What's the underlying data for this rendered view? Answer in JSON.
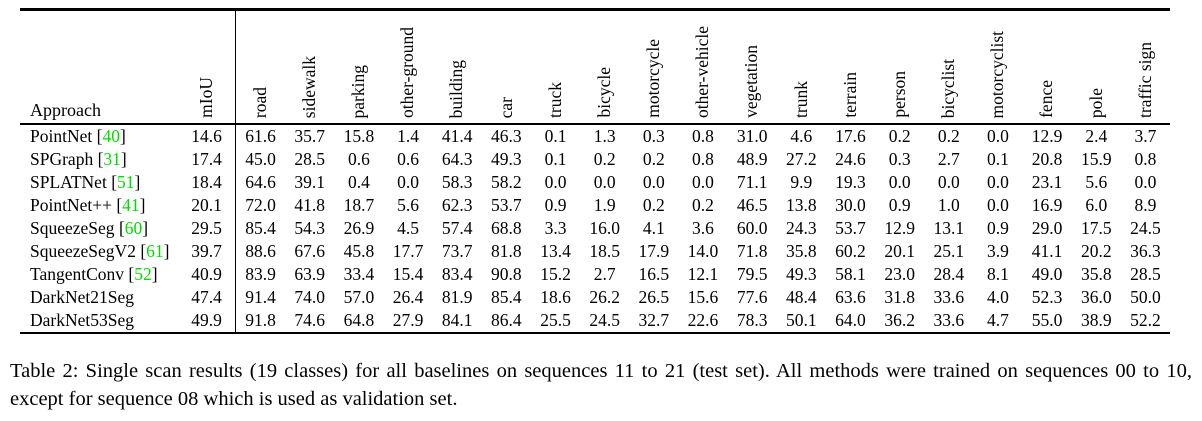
{
  "colors": {
    "text": "#000000",
    "background": "#ffffff",
    "citation_green": "#00dd00"
  },
  "citation_format": {
    "open": " [",
    "close": "]"
  },
  "table": {
    "header": {
      "approach_label": "Approach",
      "miou_label": "mIoU",
      "class_labels": [
        "road",
        "sidewalk",
        "parking",
        "other-ground",
        "building",
        "car",
        "truck",
        "bicycle",
        "motorcycle",
        "other-vehicle",
        "vegetation",
        "trunk",
        "terrain",
        "person",
        "bicyclist",
        "motorcyclist",
        "fence",
        "pole",
        "traffic sign"
      ]
    },
    "rows": [
      {
        "approach": "PointNet",
        "citation": "40",
        "miou": "14.6",
        "values": [
          "61.6",
          "35.7",
          "15.8",
          "1.4",
          "41.4",
          "46.3",
          "0.1",
          "1.3",
          "0.3",
          "0.8",
          "31.0",
          "4.6",
          "17.6",
          "0.2",
          "0.2",
          "0.0",
          "12.9",
          "2.4",
          "3.7"
        ]
      },
      {
        "approach": "SPGraph",
        "citation": "31",
        "miou": "17.4",
        "values": [
          "45.0",
          "28.5",
          "0.6",
          "0.6",
          "64.3",
          "49.3",
          "0.1",
          "0.2",
          "0.2",
          "0.8",
          "48.9",
          "27.2",
          "24.6",
          "0.3",
          "2.7",
          "0.1",
          "20.8",
          "15.9",
          "0.8"
        ]
      },
      {
        "approach": "SPLATNet",
        "citation": "51",
        "miou": "18.4",
        "values": [
          "64.6",
          "39.1",
          "0.4",
          "0.0",
          "58.3",
          "58.2",
          "0.0",
          "0.0",
          "0.0",
          "0.0",
          "71.1",
          "9.9",
          "19.3",
          "0.0",
          "0.0",
          "0.0",
          "23.1",
          "5.6",
          "0.0"
        ]
      },
      {
        "approach": "PointNet++",
        "citation": "41",
        "miou": "20.1",
        "values": [
          "72.0",
          "41.8",
          "18.7",
          "5.6",
          "62.3",
          "53.7",
          "0.9",
          "1.9",
          "0.2",
          "0.2",
          "46.5",
          "13.8",
          "30.0",
          "0.9",
          "1.0",
          "0.0",
          "16.9",
          "6.0",
          "8.9"
        ]
      },
      {
        "approach": "SqueezeSeg",
        "citation": "60",
        "miou": "29.5",
        "values": [
          "85.4",
          "54.3",
          "26.9",
          "4.5",
          "57.4",
          "68.8",
          "3.3",
          "16.0",
          "4.1",
          "3.6",
          "60.0",
          "24.3",
          "53.7",
          "12.9",
          "13.1",
          "0.9",
          "29.0",
          "17.5",
          "24.5"
        ]
      },
      {
        "approach": "SqueezeSegV2",
        "citation": "61",
        "miou": "39.7",
        "values": [
          "88.6",
          "67.6",
          "45.8",
          "17.7",
          "73.7",
          "81.8",
          "13.4",
          "18.5",
          "17.9",
          "14.0",
          "71.8",
          "35.8",
          "60.2",
          "20.1",
          "25.1",
          "3.9",
          "41.1",
          "20.2",
          "36.3"
        ]
      },
      {
        "approach": "TangentConv",
        "citation": "52",
        "miou": "40.9",
        "values": [
          "83.9",
          "63.9",
          "33.4",
          "15.4",
          "83.4",
          "90.8",
          "15.2",
          "2.7",
          "16.5",
          "12.1",
          "79.5",
          "49.3",
          "58.1",
          "23.0",
          "28.4",
          "8.1",
          "49.0",
          "35.8",
          "28.5"
        ]
      },
      {
        "approach": "DarkNet21Seg",
        "citation": null,
        "miou": "47.4",
        "values": [
          "91.4",
          "74.0",
          "57.0",
          "26.4",
          "81.9",
          "85.4",
          "18.6",
          "26.2",
          "26.5",
          "15.6",
          "77.6",
          "48.4",
          "63.6",
          "31.8",
          "33.6",
          "4.0",
          "52.3",
          "36.0",
          "50.0"
        ]
      },
      {
        "approach": "DarkNet53Seg",
        "citation": null,
        "miou": "49.9",
        "values": [
          "91.8",
          "74.6",
          "64.8",
          "27.9",
          "84.1",
          "86.4",
          "25.5",
          "24.5",
          "32.7",
          "22.6",
          "78.3",
          "50.1",
          "64.0",
          "36.2",
          "33.6",
          "4.7",
          "55.0",
          "38.9",
          "52.2"
        ]
      }
    ]
  },
  "caption": {
    "text": "Table 2:  Single scan results (19 classes) for all baselines on sequences 11 to 21 (test set).  All methods were trained on sequences 00 to 10, except for sequence 08 which is used as validation set."
  }
}
